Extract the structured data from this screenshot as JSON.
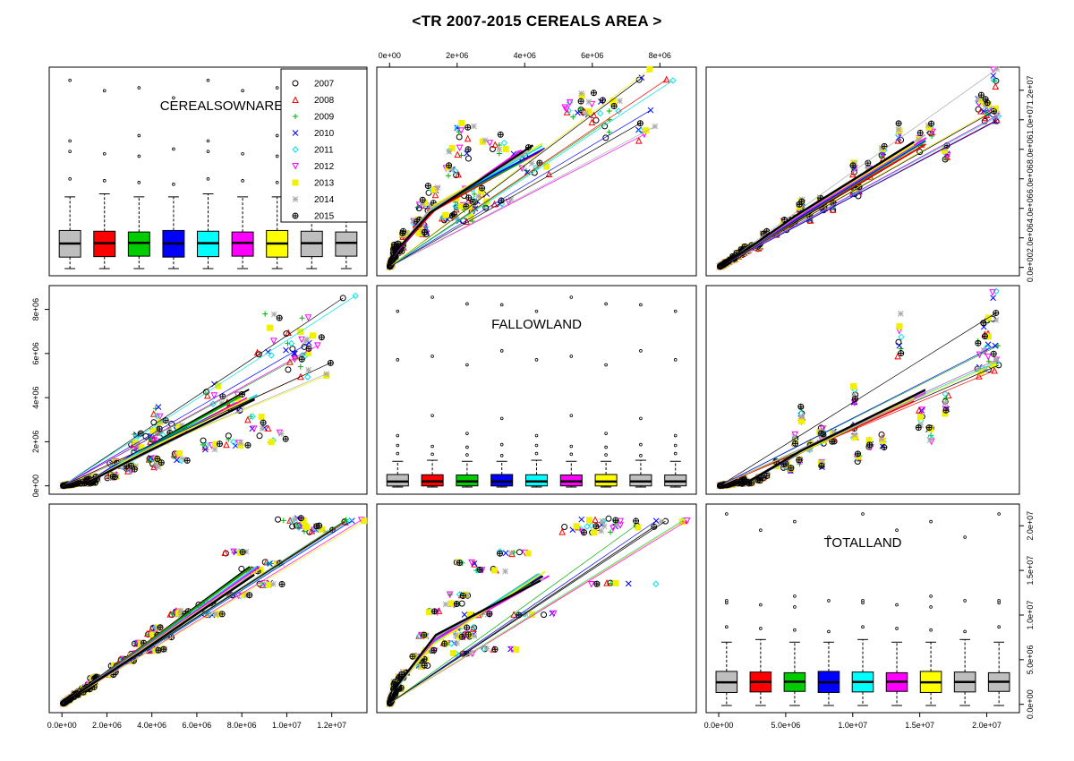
{
  "title": "<TR 2007-2015 CEREALS AREA >",
  "chart_data": {
    "type": "scatter",
    "subtype": "scatterplot-matrix",
    "variables": [
      "CEREALSOWNAREA",
      "FALLOWLAND",
      "TOTALLAND"
    ],
    "years": [
      "2007",
      "2008",
      "2009",
      "2010",
      "2011",
      "2012",
      "2013",
      "2014",
      "2015"
    ],
    "year_colors": [
      "#000000",
      "#ff0000",
      "#00b000",
      "#0000ff",
      "#00e5e5",
      "#ff00ff",
      "#f0f000",
      "#aaaaaa",
      "#000000"
    ],
    "box_fill_colors": [
      "#bebebe",
      "#ff0000",
      "#00cd00",
      "#0000ff",
      "#00ffff",
      "#ff00ff",
      "#ffff00",
      "#bebebe",
      "#bebebe"
    ],
    "year_symbols": [
      "circle",
      "triangle",
      "plus",
      "cross",
      "diamond",
      "triangle-down",
      "square",
      "asterisk",
      "circle-plus"
    ],
    "axes": {
      "CEREALSOWNAREA": {
        "range": [
          0,
          13000000
        ],
        "ticks": [
          "0.0e+00",
          "2.0e+06",
          "4.0e+06",
          "6.0e+06",
          "8.0e+06",
          "1.0e+07",
          "1.2e+07"
        ]
      },
      "FALLOWLAND": {
        "range": [
          0,
          8700000
        ],
        "ticks": [
          "0e+00",
          "2e+06",
          "4e+06",
          "6e+06",
          "8e+06"
        ]
      },
      "TOTALLAND": {
        "range": [
          0,
          21500000
        ],
        "ticks": [
          "0.0e+00",
          "5.0e+06",
          "1.0e+07",
          "1.5e+07",
          "2.0e+07"
        ]
      }
    },
    "boxplots": {
      "CEREALSOWNAREA": {
        "q1": 800000,
        "median": 1700000,
        "q3": 2500000,
        "whisker_low": 0,
        "whisker_high": 5000000,
        "outliers": [
          6000000,
          8000000,
          8900000,
          11900000,
          12600000
        ]
      },
      "FALLOWLAND": {
        "q1": 50000,
        "median": 250000,
        "q3": 550000,
        "whisker_low": 0,
        "whisker_high": 1200000,
        "outliers": [
          1500000,
          1900000,
          2400000,
          3200000,
          5700000,
          6100000,
          8200000,
          8500000
        ]
      },
      "TOTALLAND": {
        "q1": 1500000,
        "median": 2600000,
        "q3": 3700000,
        "whisker_low": 0,
        "whisker_high": 7300000,
        "outliers": [
          8700000,
          11600000,
          12100000,
          19400000,
          21200000
        ]
      }
    },
    "legend": {
      "position": "top-right of CEREALSOWNAREA panel",
      "entries": [
        "2007",
        "2008",
        "2009",
        "2010",
        "2011",
        "2012",
        "2013",
        "2014",
        "2015"
      ]
    },
    "ranges_by_panel": {
      "CEREALSOWNAREA_vs_FALLOWLAND": {
        "x": [
          0,
          8700000
        ],
        "y": [
          0,
          13000000
        ]
      },
      "CEREALSOWNAREA_vs_TOTALLAND": {
        "x": [
          0,
          21500000
        ],
        "y": [
          0,
          13000000
        ]
      },
      "FALLOWLAND_vs_CEREALSOWNAREA": {
        "x": [
          0,
          13000000
        ],
        "y": [
          0,
          8700000
        ]
      },
      "FALLOWLAND_vs_TOTALLAND": {
        "x": [
          0,
          21500000
        ],
        "y": [
          0,
          8700000
        ]
      },
      "TOTALLAND_vs_CEREALSOWNAREA": {
        "x": [
          0,
          13000000
        ],
        "y": [
          0,
          21500000
        ]
      },
      "TOTALLAND_vs_FALLOWLAND": {
        "x": [
          0,
          8700000
        ],
        "y": [
          0,
          21500000
        ]
      }
    },
    "approx_max_points": {
      "CEREALSOWNAREA": 13000000,
      "FALLOWLAND": 8500000,
      "TOTALLAND": 21000000
    }
  }
}
